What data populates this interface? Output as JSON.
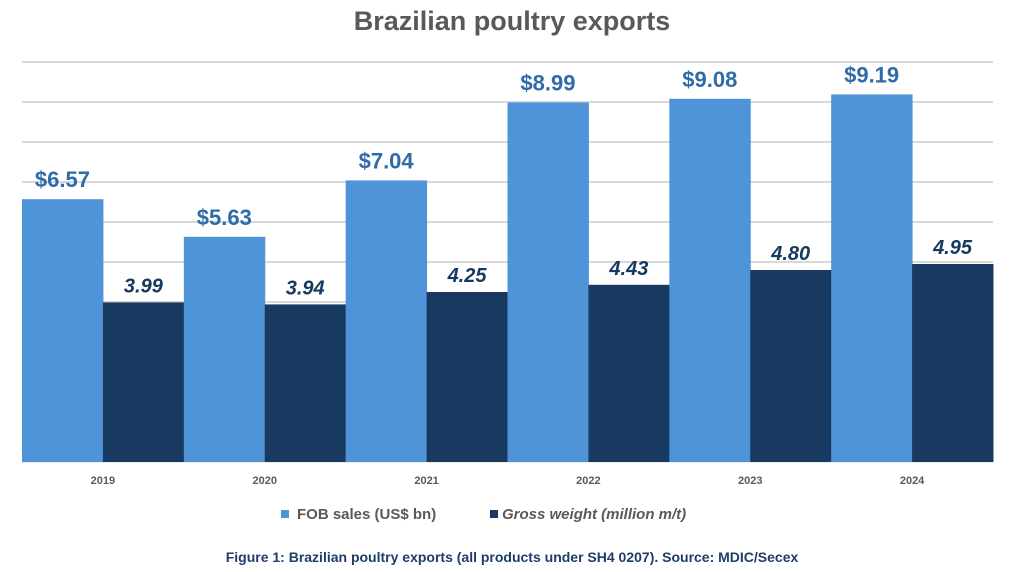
{
  "chart_data": {
    "type": "bar",
    "title": "Brazilian poultry exports",
    "categories": [
      "2019",
      "2020",
      "2021",
      "2022",
      "2023",
      "2024"
    ],
    "series": [
      {
        "name": "FOB sales (US$ bn)",
        "values": [
          6.57,
          5.63,
          7.04,
          8.99,
          9.08,
          9.19
        ],
        "labels": [
          "$6.57",
          "$5.63",
          "$7.04",
          "$8.99",
          "$9.08",
          "$9.19"
        ],
        "color": "#4f94d9"
      },
      {
        "name": "Gross weight (million m/t)",
        "values": [
          3.99,
          3.94,
          4.25,
          4.43,
          4.8,
          4.95
        ],
        "labels": [
          "3.99",
          "3.94",
          "4.25",
          "4.43",
          "4.80",
          "4.95"
        ],
        "color": "#183a61"
      }
    ],
    "ylim": [
      0,
      10
    ],
    "grid": true,
    "legend": "bottom",
    "caption": "Figure 1: Brazilian poultry exports (all products under SH4 0207). Source: MDIC/Secex"
  }
}
